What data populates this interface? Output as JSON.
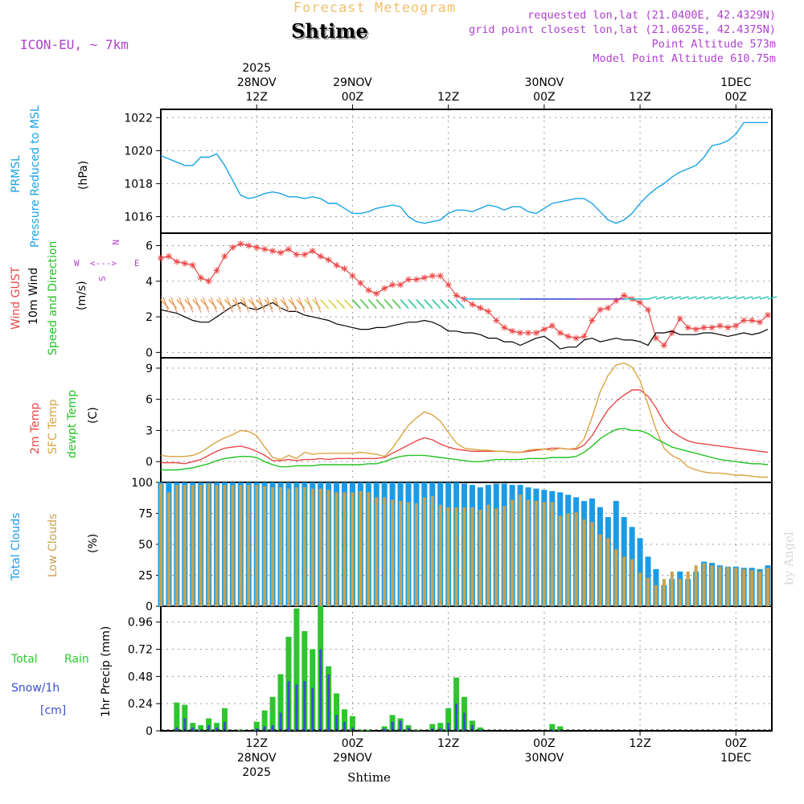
{
  "header": {
    "app_title": "Forecast Meteogram",
    "location": "Shtime",
    "model": "ICON-EU, ~ 7km",
    "requested": "requested lon,lat (21.0400E, 42.4329N)",
    "grid_point": "grid point closest lon,lat (21.0625E, 42.4375N)",
    "point_altitude": "Point Altitude 573m",
    "model_altitude": "Model Point Altitude 610.75m",
    "credit": "by Angel",
    "bottom_label": "Shtime"
  },
  "colors": {
    "pressure": "#1aa3e6",
    "gust": "#e84848",
    "wind": "#000000",
    "t2m": "#e84848",
    "sfc": "#d9a441",
    "dewpt": "#22c322",
    "total_clouds": "#1a9be6",
    "low_clouds": "#c9a24d",
    "rain": "#2ec62e",
    "snow": "#3a4fd0",
    "purple": "#b040d0",
    "orange": "#f0c070"
  },
  "time_axis": {
    "top_labels": [
      {
        "h": 12,
        "lines": [
          "2025",
          "28NOV",
          "12Z"
        ]
      },
      {
        "h": 24,
        "lines": [
          "29NOV",
          "00Z"
        ]
      },
      {
        "h": 36,
        "lines": [
          "12Z"
        ]
      },
      {
        "h": 48,
        "lines": [
          "30NOV",
          "00Z"
        ]
      },
      {
        "h": 60,
        "lines": [
          "12Z"
        ]
      },
      {
        "h": 72,
        "lines": [
          "1DEC",
          "00Z"
        ]
      }
    ],
    "bottom_labels": [
      {
        "h": 12,
        "lines": [
          "12Z",
          "28NOV",
          "2025"
        ]
      },
      {
        "h": 24,
        "lines": [
          "00Z",
          "29NOV"
        ]
      },
      {
        "h": 36,
        "lines": [
          "12Z"
        ]
      },
      {
        "h": 48,
        "lines": [
          "00Z",
          "30NOV"
        ]
      },
      {
        "h": 60,
        "lines": [
          "12Z"
        ]
      },
      {
        "h": 72,
        "lines": [
          "00Z",
          "1DEC"
        ]
      }
    ]
  },
  "chart_data": [
    {
      "type": "line",
      "panel": "pressure",
      "ylabels": [
        "PRMSL",
        "Pressure Reduced to MSL",
        "(hPa)"
      ],
      "ylim": [
        1015,
        1022.5
      ],
      "yticks": [
        1016,
        1018,
        1020,
        1022
      ],
      "x": [
        0,
        1,
        2,
        3,
        4,
        5,
        6,
        7,
        8,
        9,
        10,
        11,
        12,
        13,
        14,
        15,
        16,
        17,
        18,
        19,
        20,
        21,
        22,
        23,
        24,
        25,
        26,
        27,
        28,
        29,
        30,
        31,
        32,
        33,
        34,
        35,
        36,
        37,
        38,
        39,
        40,
        41,
        42,
        43,
        44,
        45,
        46,
        47,
        48,
        49,
        50,
        51,
        52,
        53,
        54,
        55,
        56,
        57,
        58,
        59,
        60,
        61,
        62,
        63,
        64,
        65,
        66,
        67,
        68,
        69,
        70,
        71,
        72,
        73,
        74,
        75,
        76
      ],
      "series": [
        {
          "name": "PRMSL",
          "values": [
            1019.7,
            1019.5,
            1019.3,
            1019.1,
            1019.1,
            1019.6,
            1019.6,
            1019.8,
            1019.1,
            1018.2,
            1017.3,
            1017.1,
            1017.2,
            1017.4,
            1017.5,
            1017.4,
            1017.2,
            1017.2,
            1017.1,
            1017.2,
            1017.1,
            1016.8,
            1016.8,
            1016.5,
            1016.2,
            1016.2,
            1016.3,
            1016.5,
            1016.6,
            1016.7,
            1016.6,
            1016.0,
            1015.7,
            1015.6,
            1015.7,
            1015.8,
            1016.2,
            1016.4,
            1016.4,
            1016.3,
            1016.5,
            1016.7,
            1016.6,
            1016.4,
            1016.6,
            1016.6,
            1016.3,
            1016.2,
            1016.5,
            1016.8,
            1016.9,
            1017.0,
            1017.1,
            1017.1,
            1016.8,
            1016.3,
            1015.8,
            1015.6,
            1015.8,
            1016.2,
            1016.8,
            1017.3,
            1017.7,
            1018.0,
            1018.4,
            1018.7,
            1018.9,
            1019.1,
            1019.6,
            1020.3,
            1020.4,
            1020.6,
            1021.0,
            1021.7,
            1021.7,
            1021.7,
            1021.7
          ]
        }
      ]
    },
    {
      "type": "line",
      "panel": "wind",
      "ylabels": [
        "Wind GUST",
        "10m Wind",
        "Speed and Direction",
        "(m/s)"
      ],
      "compass": {
        "n": "N",
        "w": "W",
        "e": "E",
        "s": "S",
        "arrows": "<--->"
      },
      "ylim": [
        -0.3,
        6.7
      ],
      "yticks": [
        0,
        2,
        4,
        6
      ],
      "series": [
        {
          "name": "Wind GUST",
          "values": [
            5.3,
            5.4,
            5.1,
            5.0,
            4.9,
            4.2,
            4.0,
            4.6,
            5.4,
            5.9,
            6.1,
            6.0,
            5.9,
            5.8,
            5.7,
            5.6,
            5.8,
            5.5,
            5.5,
            5.7,
            5.4,
            5.2,
            4.9,
            4.7,
            4.3,
            3.9,
            3.5,
            3.3,
            3.6,
            3.8,
            3.8,
            4.1,
            4.1,
            4.2,
            4.3,
            4.3,
            3.8,
            3.2,
            3.0,
            2.7,
            2.5,
            2.3,
            1.8,
            1.4,
            1.2,
            1.1,
            1.1,
            1.1,
            1.3,
            1.5,
            1.1,
            0.9,
            0.8,
            0.9,
            1.8,
            2.4,
            2.5,
            2.9,
            3.2,
            3.0,
            2.8,
            2.4,
            0.8,
            0.4,
            1.1,
            1.9,
            1.4,
            1.3,
            1.4,
            1.4,
            1.5,
            1.4,
            1.5,
            1.8,
            1.8,
            1.7,
            2.1
          ]
        },
        {
          "name": "10m Wind",
          "values": [
            2.4,
            2.3,
            2.2,
            2.0,
            1.8,
            1.7,
            1.7,
            2.0,
            2.3,
            2.6,
            2.8,
            2.5,
            2.4,
            2.6,
            2.8,
            2.5,
            2.3,
            2.3,
            2.1,
            2.0,
            1.9,
            1.8,
            1.6,
            1.5,
            1.4,
            1.3,
            1.3,
            1.4,
            1.4,
            1.5,
            1.6,
            1.7,
            1.7,
            1.8,
            1.7,
            1.5,
            1.2,
            1.2,
            1.1,
            1.1,
            1.0,
            0.8,
            0.8,
            0.6,
            0.6,
            0.4,
            0.6,
            0.8,
            0.9,
            0.6,
            0.2,
            0.3,
            0.3,
            0.7,
            0.8,
            0.6,
            0.7,
            0.8,
            0.7,
            0.7,
            0.6,
            0.4,
            1.1,
            1.1,
            1.2,
            1.0,
            1.0,
            1.0,
            1.1,
            1.1,
            1.0,
            0.9,
            1.0,
            1.1,
            1.0,
            1.1,
            1.3
          ]
        }
      ]
    },
    {
      "type": "line",
      "panel": "temperature",
      "ylabels": [
        "2m Temp",
        "SFC Temp",
        "dewpt Temp",
        "(C)"
      ],
      "ylim": [
        -2,
        10
      ],
      "yticks": [
        0,
        3,
        6,
        9
      ],
      "series": [
        {
          "name": "2m Temp",
          "values": [
            -0.1,
            -0.1,
            -0.1,
            -0.2,
            0.0,
            0.2,
            0.6,
            1.0,
            1.3,
            1.4,
            1.5,
            1.3,
            1.0,
            0.6,
            0.1,
            0.1,
            0.2,
            0.1,
            0.2,
            0.2,
            0.3,
            0.2,
            0.3,
            0.3,
            0.3,
            0.3,
            0.3,
            0.3,
            0.4,
            0.8,
            1.2,
            1.6,
            2.0,
            2.3,
            2.1,
            1.7,
            1.4,
            1.2,
            1.1,
            1.0,
            1.0,
            1.0,
            1.0,
            1.0,
            0.9,
            0.9,
            1.0,
            1.1,
            1.2,
            1.3,
            1.3,
            1.2,
            1.2,
            1.6,
            2.5,
            3.8,
            5.0,
            5.8,
            6.4,
            6.9,
            6.9,
            6.3,
            5.2,
            3.8,
            2.9,
            2.4,
            2.0,
            1.8,
            1.7,
            1.6,
            1.5,
            1.4,
            1.3,
            1.2,
            1.1,
            1.0,
            0.9
          ]
        },
        {
          "name": "SFC Temp",
          "values": [
            0.6,
            0.5,
            0.5,
            0.5,
            0.6,
            0.9,
            1.4,
            1.9,
            2.3,
            2.6,
            3.0,
            2.9,
            2.5,
            1.4,
            0.4,
            0.2,
            0.6,
            0.3,
            0.9,
            0.7,
            0.8,
            0.8,
            0.8,
            0.8,
            0.8,
            0.9,
            0.8,
            0.7,
            0.5,
            1.3,
            2.4,
            3.5,
            4.2,
            4.8,
            4.5,
            3.9,
            2.8,
            1.8,
            1.3,
            1.2,
            1.1,
            1.1,
            1.0,
            1.0,
            0.9,
            0.9,
            1.1,
            1.2,
            1.2,
            1.1,
            1.3,
            1.2,
            1.3,
            2.2,
            4.3,
            6.7,
            8.3,
            9.3,
            9.5,
            9.1,
            7.8,
            5.5,
            3.1,
            1.3,
            0.6,
            0.2,
            -0.5,
            -0.8,
            -1.0,
            -1.1,
            -1.1,
            -1.2,
            -1.3,
            -1.3,
            -1.4,
            -1.5,
            -1.5
          ]
        },
        {
          "name": "dewpt Temp",
          "values": [
            -0.8,
            -0.8,
            -0.8,
            -0.7,
            -0.6,
            -0.4,
            -0.2,
            0.1,
            0.3,
            0.4,
            0.5,
            0.5,
            0.4,
            0.0,
            -0.3,
            -0.5,
            -0.5,
            -0.4,
            -0.4,
            -0.4,
            -0.3,
            -0.3,
            -0.3,
            -0.3,
            -0.3,
            -0.3,
            -0.2,
            -0.2,
            0.0,
            0.3,
            0.5,
            0.6,
            0.6,
            0.6,
            0.5,
            0.4,
            0.3,
            0.2,
            0.1,
            0.0,
            0.0,
            0.1,
            0.2,
            0.2,
            0.2,
            0.2,
            0.3,
            0.3,
            0.3,
            0.4,
            0.4,
            0.4,
            0.5,
            0.9,
            1.5,
            2.2,
            2.7,
            3.1,
            3.2,
            3.0,
            3.0,
            2.7,
            2.2,
            1.8,
            1.4,
            1.2,
            1.0,
            0.8,
            0.6,
            0.4,
            0.2,
            0.1,
            0.0,
            -0.1,
            -0.2,
            -0.2,
            -0.3
          ]
        }
      ]
    },
    {
      "type": "bar",
      "panel": "clouds",
      "ylabels": [
        "Total Clouds",
        "Low Clouds",
        "(%)"
      ],
      "ylim": [
        0,
        100
      ],
      "yticks": [
        0,
        25,
        50,
        75,
        100
      ],
      "series": [
        {
          "name": "Total Clouds",
          "values": [
            100,
            100,
            100,
            100,
            100,
            100,
            100,
            100,
            100,
            100,
            100,
            100,
            100,
            100,
            100,
            100,
            100,
            100,
            100,
            100,
            100,
            100,
            100,
            100,
            100,
            100,
            100,
            100,
            100,
            100,
            100,
            100,
            100,
            100,
            100,
            100,
            100,
            100,
            99,
            98,
            96,
            98,
            99,
            99,
            98,
            98,
            96,
            95,
            94,
            93,
            92,
            90,
            88,
            85,
            87,
            80,
            72,
            85,
            72,
            64,
            55,
            40,
            30,
            17,
            22,
            28,
            22,
            28,
            36,
            35,
            33,
            32,
            32,
            31,
            31,
            30,
            33
          ]
        },
        {
          "name": "Low Clouds",
          "values": [
            99,
            92,
            98,
            98,
            98,
            98,
            99,
            98,
            98,
            98,
            98,
            98,
            98,
            97,
            96,
            96,
            95,
            96,
            96,
            95,
            95,
            94,
            92,
            92,
            92,
            93,
            92,
            88,
            88,
            86,
            85,
            84,
            83,
            88,
            89,
            82,
            80,
            80,
            80,
            80,
            78,
            82,
            79,
            81,
            86,
            90,
            86,
            85,
            84,
            84,
            73,
            75,
            76,
            70,
            68,
            58,
            55,
            46,
            40,
            38,
            27,
            23,
            17,
            22,
            28,
            22,
            28,
            33,
            35,
            33,
            32,
            32,
            31,
            30,
            29,
            28,
            31
          ]
        }
      ]
    },
    {
      "type": "bar",
      "panel": "precip",
      "ylabels": [
        "Total Rain",
        "Snow/1h",
        "[cm]",
        "1hr Precip (mm)"
      ],
      "ylim": [
        0,
        1.1
      ],
      "yticks": [
        0,
        0.24,
        0.48,
        0.72,
        0.96
      ],
      "series": [
        {
          "name": "Total Rain",
          "values": [
            0,
            0,
            0.25,
            0.23,
            0.07,
            0.05,
            0.11,
            0.07,
            0.2,
            0,
            0.01,
            0,
            0.08,
            0.18,
            0.3,
            0.5,
            0.83,
            1.08,
            0.88,
            0.72,
            1.1,
            0.57,
            0.33,
            0.19,
            0.13,
            0.01,
            0.01,
            0,
            0.04,
            0.14,
            0.11,
            0.05,
            0.01,
            0,
            0.06,
            0.07,
            0.2,
            0.47,
            0.3,
            0.09,
            0.03,
            0,
            0,
            0,
            0,
            0,
            0,
            0,
            0,
            0.06,
            0.04,
            0,
            0,
            0,
            0,
            0,
            0,
            0,
            0,
            0,
            0,
            0,
            0,
            0,
            0,
            0,
            0,
            0,
            0,
            0,
            0,
            0,
            0,
            0,
            0,
            0,
            0
          ]
        },
        {
          "name": "Snow/1h",
          "values": [
            0,
            0,
            0.03,
            0.11,
            0.03,
            0.01,
            0.05,
            0.03,
            0.08,
            0,
            0,
            0,
            0.02,
            0.04,
            0.05,
            0.16,
            0.44,
            0.41,
            0.44,
            0.38,
            0.72,
            0.5,
            0.14,
            0.08,
            0.03,
            0,
            0,
            0,
            0.02,
            0.08,
            0.09,
            0.03,
            0,
            0,
            0.02,
            0.02,
            0.07,
            0.24,
            0.16,
            0.05,
            0.01,
            0,
            0,
            0,
            0,
            0,
            0,
            0,
            0,
            0.01,
            0.01,
            0,
            0,
            0,
            0,
            0,
            0,
            0,
            0,
            0,
            0,
            0,
            0,
            0,
            0,
            0,
            0,
            0,
            0,
            0,
            0,
            0,
            0,
            0,
            0,
            0,
            0
          ]
        }
      ]
    }
  ]
}
